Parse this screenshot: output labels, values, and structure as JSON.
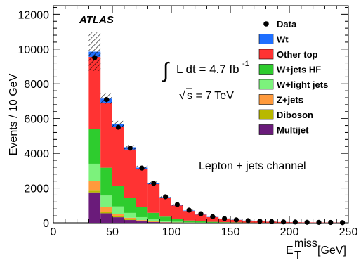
{
  "experiment_label": "ATLAS",
  "chart_data": {
    "type": "bar",
    "stacked": true,
    "xlabel": "E_T^miss [GeV]",
    "xlabel_main": "E",
    "xlabel_sub": "T",
    "xlabel_sup": "miss",
    "xlabel_unit": "[GeV]",
    "ylabel": "Events / 10 GeV",
    "xlim": [
      0,
      250
    ],
    "ylim": [
      0,
      12500
    ],
    "x_ticks": [
      0,
      50,
      100,
      150,
      200,
      250
    ],
    "y_ticks": [
      0,
      2000,
      4000,
      6000,
      8000,
      10000,
      12000
    ],
    "bin_width": 10,
    "bin_low_edges": [
      30,
      40,
      50,
      60,
      70,
      80,
      90,
      100,
      110,
      120,
      130,
      140,
      150,
      160,
      170,
      180,
      190,
      200,
      210,
      220,
      230,
      240
    ],
    "series": [
      {
        "name": "Multijet",
        "color": "#6a1b7a",
        "values": [
          1750,
          550,
          320,
          160,
          80,
          40,
          20,
          10,
          5,
          3,
          2,
          1,
          1,
          0,
          0,
          0,
          0,
          0,
          0,
          0,
          0,
          0
        ]
      },
      {
        "name": "Diboson",
        "color": "#b8b800",
        "values": [
          100,
          70,
          50,
          40,
          25,
          15,
          10,
          5,
          3,
          2,
          2,
          1,
          1,
          0,
          0,
          0,
          0,
          0,
          0,
          0,
          0,
          0
        ]
      },
      {
        "name": "Z+jets",
        "color": "#ff9a3c",
        "values": [
          550,
          300,
          150,
          90,
          50,
          30,
          15,
          10,
          5,
          3,
          2,
          1,
          1,
          1,
          0,
          0,
          0,
          0,
          0,
          0,
          0,
          0
        ]
      },
      {
        "name": "W+light jets",
        "color": "#7cf27c",
        "values": [
          1000,
          650,
          420,
          280,
          170,
          110,
          70,
          40,
          25,
          15,
          10,
          6,
          4,
          2,
          2,
          1,
          1,
          1,
          0,
          0,
          0,
          0
        ]
      },
      {
        "name": "W+jets HF",
        "color": "#2ecc2e",
        "values": [
          2000,
          1600,
          1200,
          850,
          600,
          380,
          240,
          150,
          95,
          60,
          40,
          25,
          16,
          10,
          6,
          4,
          3,
          2,
          1,
          1,
          1,
          1
        ]
      },
      {
        "name": "Other top",
        "color": "#ff3333",
        "values": [
          4150,
          3750,
          3400,
          2800,
          2150,
          1650,
          1080,
          780,
          550,
          390,
          270,
          200,
          145,
          110,
          80,
          57,
          42,
          30,
          22,
          18,
          15,
          11
        ]
      },
      {
        "name": "Wt",
        "color": "#1f6fff",
        "values": [
          300,
          230,
          160,
          130,
          100,
          65,
          45,
          35,
          25,
          17,
          13,
          10,
          7,
          5,
          4,
          3,
          2,
          2,
          1,
          1,
          1,
          1
        ]
      }
    ],
    "uncertainty": [
      1100,
      300,
      170,
      130,
      110,
      80,
      55,
      40,
      30,
      20,
      15,
      10,
      8,
      5,
      4,
      3,
      2,
      2,
      1,
      1,
      1,
      1
    ],
    "data": {
      "name": "Data",
      "color": "#000000",
      "x": [
        35,
        45,
        55,
        65,
        75,
        85,
        95,
        105,
        115,
        125,
        135,
        145,
        155,
        165,
        175,
        185,
        195,
        205,
        215,
        225,
        235,
        245
      ],
      "y": [
        9500,
        7100,
        5500,
        4300,
        3150,
        2270,
        1500,
        1050,
        730,
        520,
        350,
        240,
        170,
        120,
        90,
        65,
        50,
        45,
        30,
        25,
        20,
        10
      ]
    },
    "legend_order": [
      "Data",
      "Wt",
      "Other top",
      "W+jets HF",
      "W+light jets",
      "Z+jets",
      "Diboson",
      "Multijet"
    ],
    "legend_position": "top-right",
    "luminosity_label": "L dt = 4.7 fb",
    "luminosity_exponent": "-1",
    "energy_label": "s = 7 TeV",
    "channel_label": "Lepton + jets channel"
  }
}
